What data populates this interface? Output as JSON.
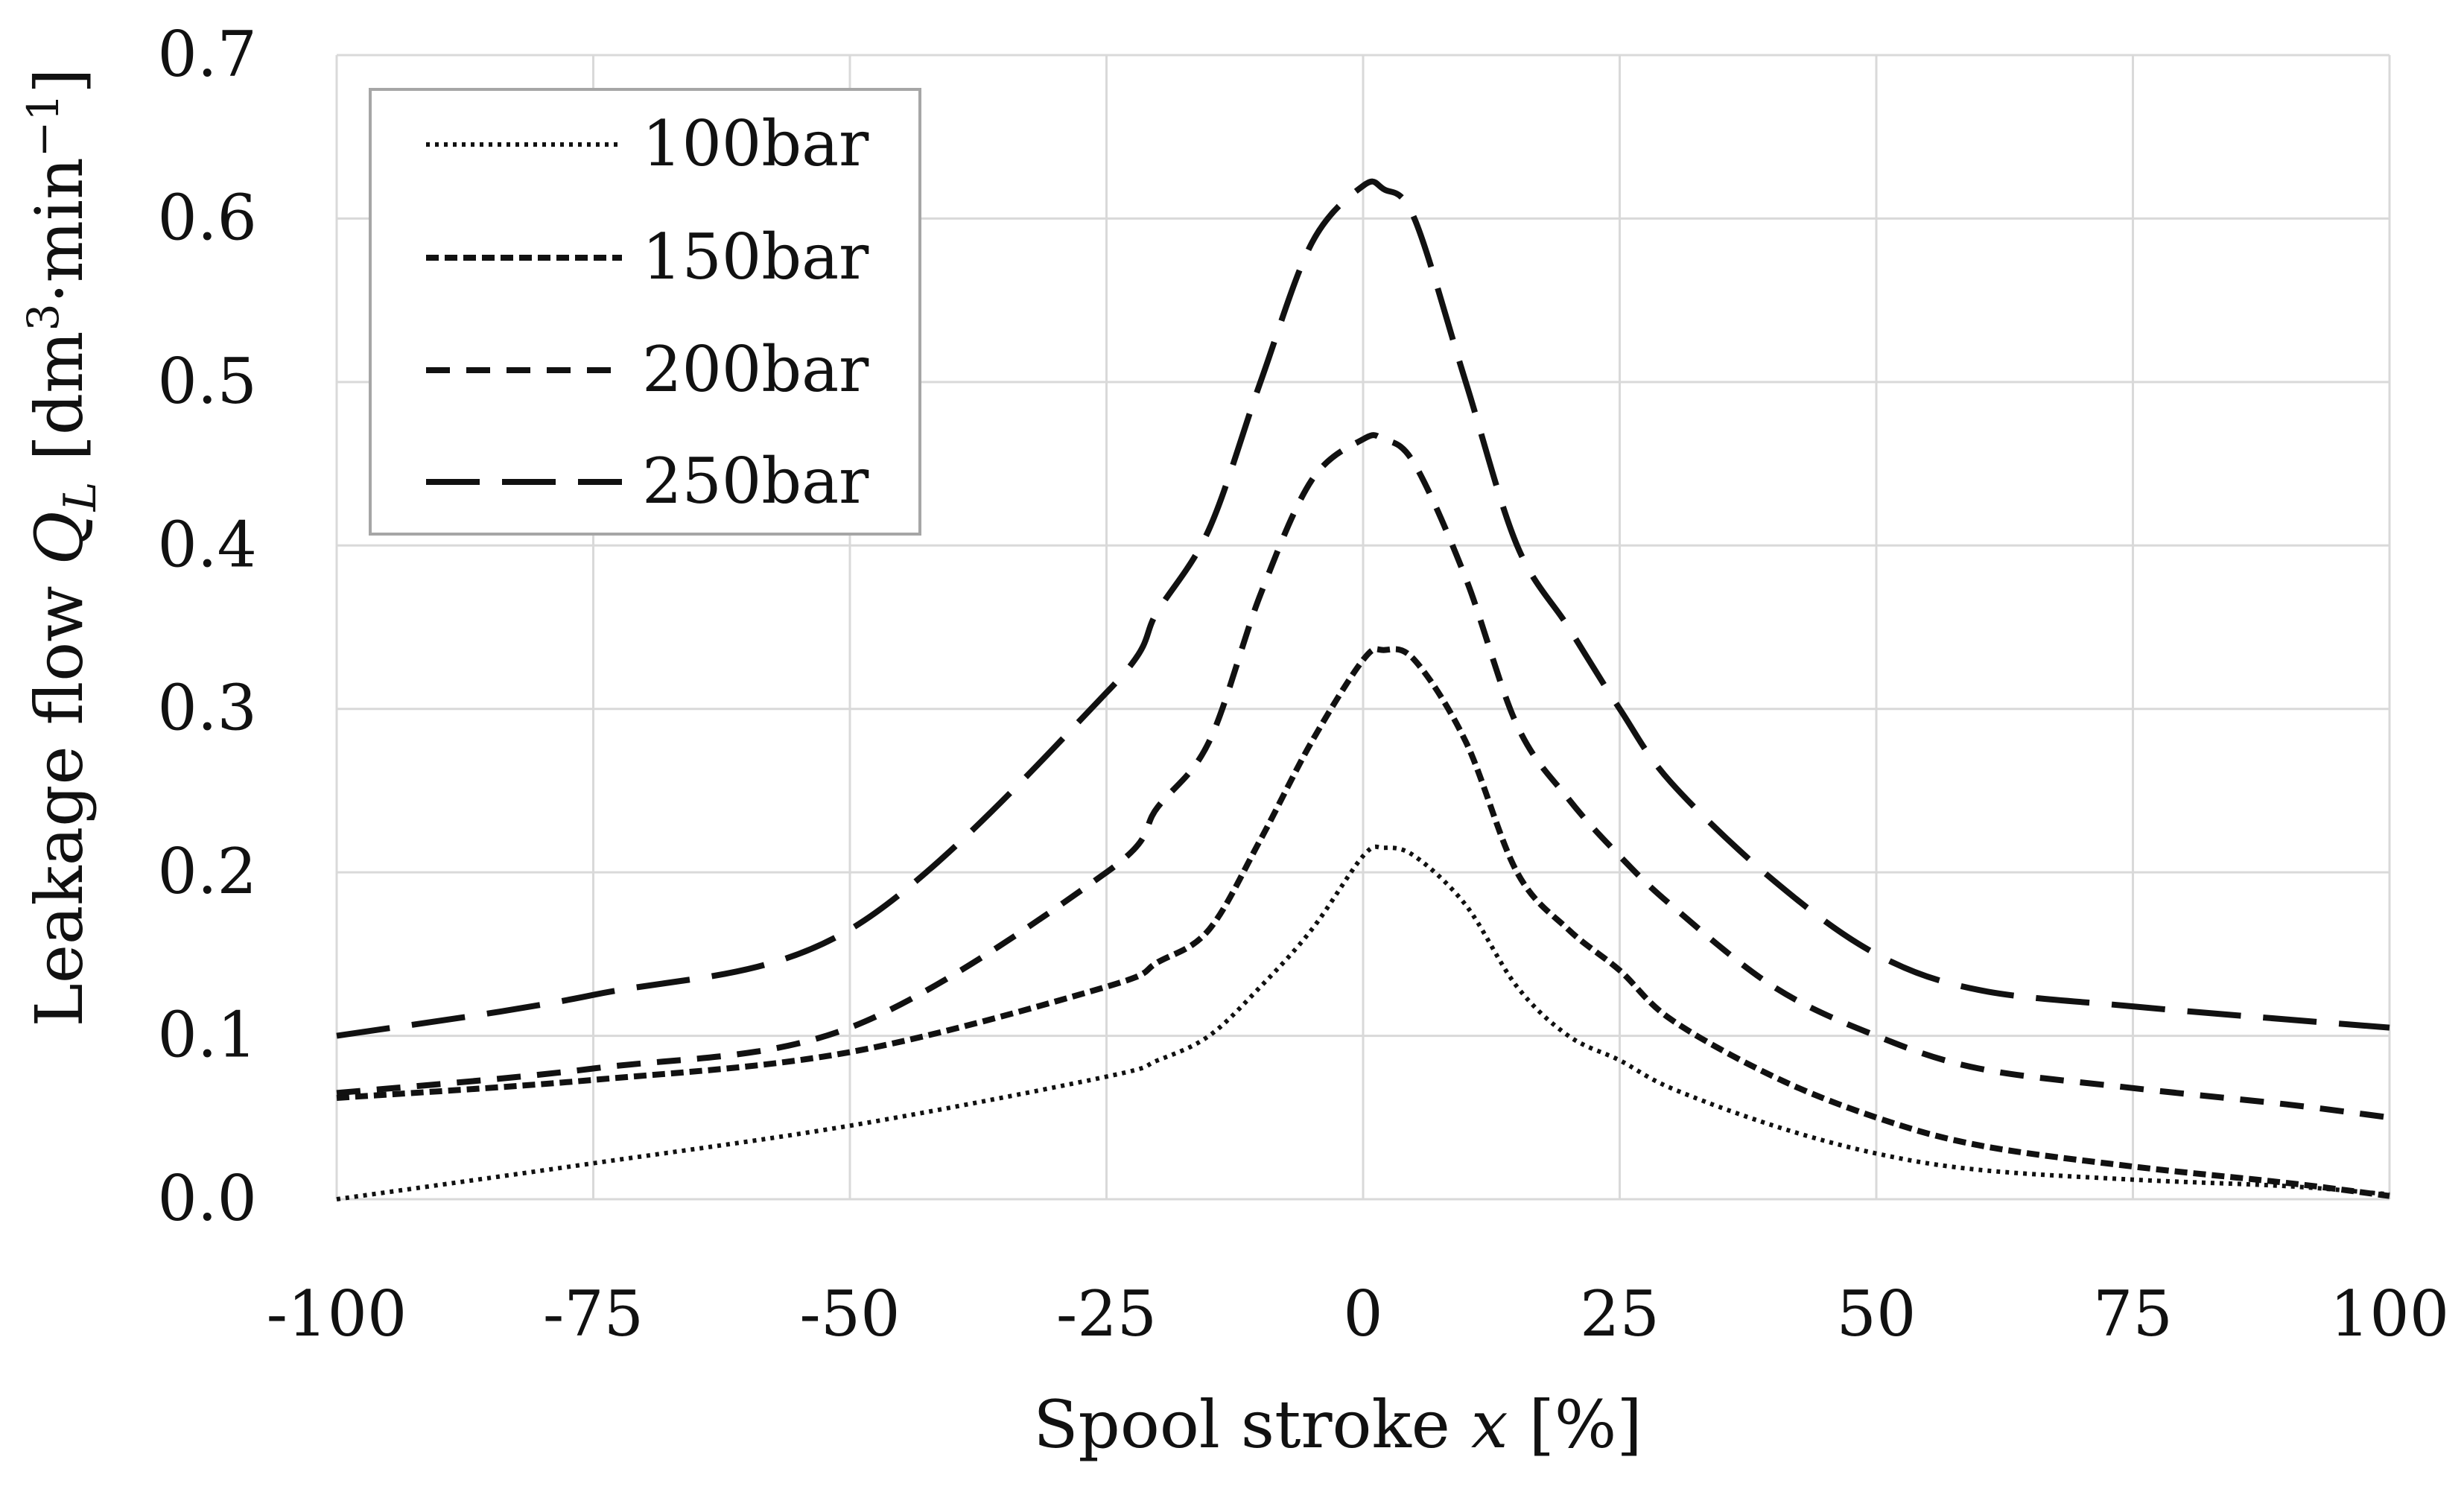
{
  "chart_data": {
    "type": "line",
    "title": "",
    "xlabel": "Spool stroke x [%]",
    "xlabel_parts": {
      "prefix": "Spool stroke ",
      "var": "x",
      "suffix": " [%]"
    },
    "ylabel": "Leakage flow Q_L [dm³·min⁻¹]",
    "ylabel_parts": {
      "prefix": "Leakage flow ",
      "var": "Q",
      "sub": "L",
      "unit_open": " [dm",
      "unit_exp1": "3",
      "unit_mid": "·min",
      "unit_exp2": "−1",
      "unit_close": "]"
    },
    "xlim": [
      -100,
      100
    ],
    "ylim": [
      0,
      0.7
    ],
    "grid": true,
    "legend_position": "top-left",
    "xticks": [
      -100,
      -75,
      -50,
      -25,
      0,
      25,
      50,
      75,
      100
    ],
    "xtick_labels": [
      "-100",
      "-75",
      "-50",
      "-25",
      "0",
      "25",
      "50",
      "75",
      "100"
    ],
    "yticks": [
      0,
      0.1,
      0.2,
      0.3,
      0.4,
      0.5,
      0.6,
      0.7
    ],
    "ytick_labels": [
      "0.0",
      "0.1",
      "0.2",
      "0.3",
      "0.4",
      "0.5",
      "0.6",
      "0.7"
    ],
    "series": [
      {
        "name": "100bar",
        "style": "dotted",
        "x": [
          -100,
          -75,
          -50,
          -25,
          -20,
          -15,
          -10,
          -5,
          0,
          2,
          5,
          10,
          15,
          20,
          25,
          30,
          40,
          50,
          60,
          75,
          90,
          100
        ],
        "y": [
          0.0,
          0.022,
          0.045,
          0.075,
          0.085,
          0.1,
          0.13,
          0.165,
          0.21,
          0.215,
          0.21,
          0.18,
          0.13,
          0.1,
          0.085,
          0.068,
          0.045,
          0.028,
          0.018,
          0.012,
          0.008,
          0.003
        ]
      },
      {
        "name": "150bar",
        "style": "short-dash",
        "x": [
          -100,
          -75,
          -50,
          -25,
          -20,
          -15,
          -10,
          -5,
          0,
          2,
          5,
          10,
          15,
          20,
          25,
          30,
          40,
          50,
          60,
          75,
          90,
          100
        ],
        "y": [
          0.062,
          0.073,
          0.09,
          0.13,
          0.145,
          0.165,
          0.22,
          0.28,
          0.33,
          0.336,
          0.33,
          0.28,
          0.2,
          0.165,
          0.14,
          0.11,
          0.075,
          0.05,
          0.033,
          0.02,
          0.01,
          0.002
        ]
      },
      {
        "name": "200bar",
        "style": "medium-dash",
        "x": [
          -100,
          -75,
          -50,
          -25,
          -20,
          -15,
          -10,
          -5,
          0,
          2,
          5,
          10,
          15,
          20,
          25,
          30,
          40,
          50,
          60,
          75,
          90,
          100
        ],
        "y": [
          0.065,
          0.08,
          0.105,
          0.2,
          0.24,
          0.28,
          0.37,
          0.44,
          0.465,
          0.465,
          0.45,
          0.38,
          0.29,
          0.245,
          0.21,
          0.18,
          0.13,
          0.1,
          0.08,
          0.068,
          0.058,
          0.05
        ]
      },
      {
        "name": "250bar",
        "style": "long-dash",
        "x": [
          -100,
          -75,
          -50,
          -25,
          -20,
          -15,
          -10,
          -5,
          0,
          2,
          5,
          10,
          15,
          20,
          25,
          30,
          40,
          50,
          60,
          75,
          90,
          100
        ],
        "y": [
          0.1,
          0.125,
          0.165,
          0.31,
          0.36,
          0.41,
          0.5,
          0.585,
          0.62,
          0.618,
          0.6,
          0.5,
          0.4,
          0.35,
          0.3,
          0.255,
          0.195,
          0.15,
          0.128,
          0.118,
          0.11,
          0.105
        ]
      }
    ]
  }
}
